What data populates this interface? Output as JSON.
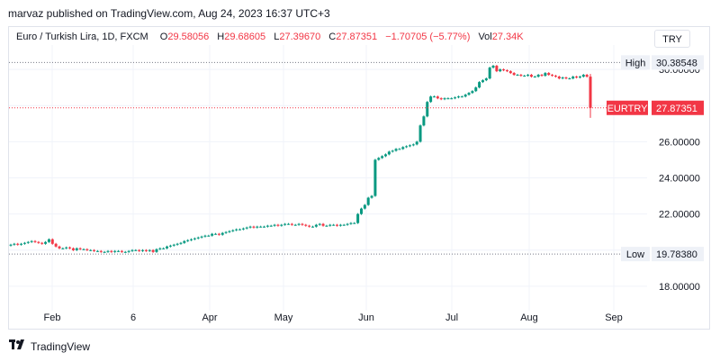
{
  "header": {
    "published": "marvaz published on TradingView.com, Aug 24, 2023 16:37 UTC+3"
  },
  "legend": {
    "symbol": "Euro / Turkish Lira, 1D, FXCM",
    "open_label": "O",
    "open": "29.58056",
    "high_label": "H",
    "high": "29.68605",
    "low_label": "L",
    "low": "27.39670",
    "close_label": "C",
    "close": "27.87351",
    "change": "−1.70705 (−5.77%)",
    "vol_label": "Vol",
    "vol": "27.34K"
  },
  "currency_button": "TRY",
  "footer": {
    "brand": "TradingView",
    "icon": "tradingview-logo-icon"
  },
  "colors": {
    "up": "#089981",
    "down": "#f23645",
    "grid": "#e0e3eb",
    "text": "#131722"
  },
  "chart_data": {
    "type": "candlestick",
    "x_labels": [
      "Feb",
      "6",
      "Apr",
      "May",
      "Jun",
      "Jul",
      "Aug",
      "Sep"
    ],
    "y_ticks": [
      "18.00000",
      "20.00000",
      "22.00000",
      "24.00000",
      "26.00000",
      "28.00000",
      "30.00000"
    ],
    "ylim": [
      16.9,
      31.1
    ],
    "markers": [
      {
        "label": "High",
        "value": "30.38548"
      },
      {
        "label": "Low",
        "value": "19.78380"
      },
      {
        "label": "EURTRY",
        "value": "27.87351"
      }
    ],
    "approx_closes": [
      20.3,
      20.35,
      20.3,
      20.35,
      20.4,
      20.45,
      20.5,
      20.45,
      20.4,
      20.35,
      20.45,
      20.6,
      20.35,
      20.2,
      20.1,
      20.1,
      20.15,
      20.1,
      20.0,
      20.1,
      20.05,
      20.05,
      20.0,
      20.0,
      19.95,
      19.95,
      19.9,
      19.9,
      19.95,
      19.9,
      19.95,
      19.95,
      19.9,
      19.9,
      19.95,
      20.0,
      20.0,
      19.95,
      20.0,
      19.95,
      20.0,
      19.9,
      20.05,
      20.1,
      20.1,
      20.2,
      20.25,
      20.3,
      20.35,
      20.4,
      20.5,
      20.55,
      20.6,
      20.65,
      20.7,
      20.75,
      20.8,
      20.8,
      20.9,
      20.9,
      20.85,
      20.95,
      21.0,
      21.05,
      21.1,
      21.15,
      21.15,
      21.2,
      21.25,
      21.3,
      21.25,
      21.3,
      21.3,
      21.3,
      21.35,
      21.35,
      21.4,
      21.35,
      21.4,
      21.45,
      21.45,
      21.4,
      21.4,
      21.45,
      21.4,
      21.35,
      21.3,
      21.3,
      21.4,
      21.45,
      21.35,
      21.35,
      21.4,
      21.4,
      21.35,
      21.4,
      21.4,
      21.45,
      21.5,
      21.5,
      22.0,
      22.3,
      22.5,
      22.9,
      23.0,
      25.0,
      25.1,
      25.2,
      25.3,
      25.45,
      25.5,
      25.6,
      25.6,
      25.7,
      25.75,
      25.8,
      25.85,
      26.0,
      26.9,
      27.4,
      28.2,
      28.5,
      28.5,
      28.4,
      28.35,
      28.4,
      28.4,
      28.4,
      28.45,
      28.5,
      28.5,
      28.6,
      28.7,
      28.8,
      29.0,
      29.3,
      29.4,
      29.5,
      30.1,
      30.2,
      29.9,
      30.0,
      29.95,
      29.9,
      29.8,
      29.7,
      29.7,
      29.65,
      29.65,
      29.7,
      29.6,
      29.6,
      29.7,
      29.65,
      29.8,
      29.7,
      29.65,
      29.6,
      29.5,
      29.55,
      29.5,
      29.5,
      29.6,
      29.55,
      29.6,
      29.7,
      29.6,
      27.87
    ]
  }
}
